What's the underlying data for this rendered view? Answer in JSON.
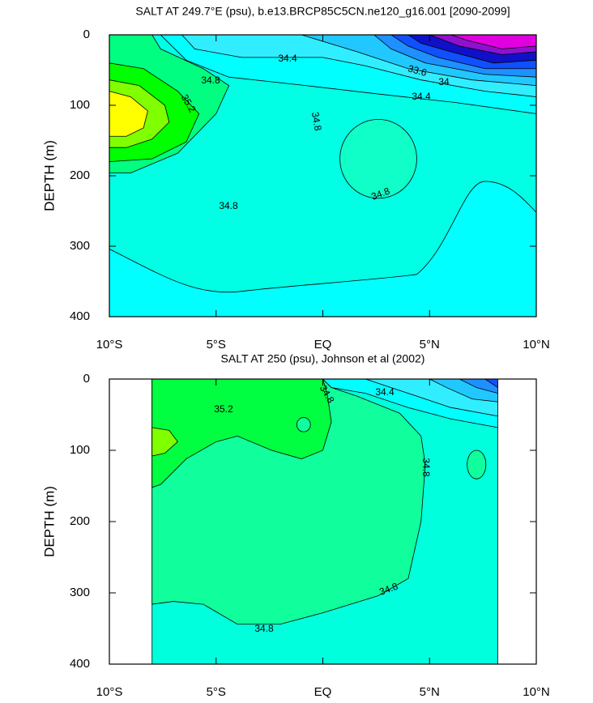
{
  "chart_data": [
    {
      "type": "contour",
      "title": "SALT AT 249.7°E (psu), b.e13.BRCP85C5CN.ne120_g16.001 [2090-2099]",
      "ylabel": "DEPTH (m)",
      "xlim": [
        -10,
        10
      ],
      "ylim": [
        0,
        400
      ],
      "y_reversed": true,
      "xticks": [
        {
          "value": -10,
          "label": "10°S"
        },
        {
          "value": -5,
          "label": "5°S"
        },
        {
          "value": 0,
          "label": "EQ"
        },
        {
          "value": 5,
          "label": "5°N"
        },
        {
          "value": 10,
          "label": "10°N"
        }
      ],
      "yticks": [
        0,
        100,
        200,
        300,
        400
      ],
      "contour_labels": [
        34.4,
        34.8,
        33.6,
        34,
        34.4,
        35.2,
        34.8,
        34.8,
        34.8
      ]
    },
    {
      "type": "contour",
      "title": "SALT AT 250 (psu), Johnson et al (2002)",
      "ylabel": "DEPTH (m)",
      "xlim": [
        -10,
        10
      ],
      "ylim": [
        0,
        400
      ],
      "y_reversed": true,
      "xticks": [
        {
          "value": -10,
          "label": "10°S"
        },
        {
          "value": -5,
          "label": "5°S"
        },
        {
          "value": 0,
          "label": "EQ"
        },
        {
          "value": 5,
          "label": "5°N"
        },
        {
          "value": 10,
          "label": "10°N"
        }
      ],
      "yticks": [
        0,
        100,
        200,
        300,
        400
      ],
      "contour_labels": [
        34.8,
        34.4,
        35.2,
        34.8,
        34.8,
        34.8
      ]
    }
  ]
}
